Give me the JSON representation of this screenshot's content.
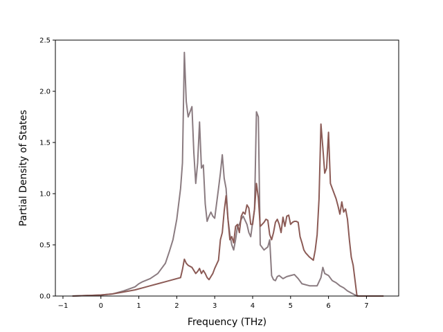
{
  "chart_data": {
    "type": "line",
    "title": "",
    "xlabel": "Frequency (THz)",
    "ylabel": "Partial Density of States",
    "xlim": [
      -1.2,
      7.85
    ],
    "ylim": [
      0,
      2.5
    ],
    "xticks": [
      -1,
      0,
      1,
      2,
      3,
      4,
      5,
      6,
      7
    ],
    "yticks": [
      0.0,
      0.5,
      1.0,
      1.5,
      2.0,
      2.5
    ],
    "xtick_labels": [
      "−1",
      "0",
      "1",
      "2",
      "3",
      "4",
      "5",
      "6",
      "7"
    ],
    "ytick_labels": [
      "0.0",
      "0.5",
      "1.0",
      "1.5",
      "2.0",
      "2.5"
    ],
    "grid": false,
    "legend": "none",
    "series": [
      {
        "color": "#8a7b80",
        "x": [
          -0.75,
          0.0,
          0.3,
          0.6,
          0.9,
          1.0,
          1.1,
          1.3,
          1.5,
          1.7,
          1.8,
          1.9,
          2.0,
          2.1,
          2.15,
          2.2,
          2.25,
          2.3,
          2.35,
          2.4,
          2.45,
          2.5,
          2.55,
          2.6,
          2.65,
          2.7,
          2.75,
          2.8,
          2.85,
          2.9,
          2.95,
          3.0,
          3.1,
          3.15,
          3.2,
          3.25,
          3.3,
          3.35,
          3.4,
          3.45,
          3.5,
          3.55,
          3.6,
          3.65,
          3.7,
          3.75,
          3.8,
          3.85,
          3.9,
          3.95,
          4.0,
          4.05,
          4.1,
          4.15,
          4.2,
          4.3,
          4.4,
          4.45,
          4.5,
          4.55,
          4.6,
          4.65,
          4.7,
          4.8,
          4.9,
          5.0,
          5.1,
          5.2,
          5.3,
          5.5,
          5.7,
          5.8,
          5.85,
          5.9,
          6.0,
          6.1,
          6.2,
          6.3,
          6.4,
          6.5,
          6.6,
          6.7,
          6.8,
          7.45
        ],
        "y": [
          0.0,
          0.01,
          0.02,
          0.05,
          0.09,
          0.12,
          0.14,
          0.17,
          0.22,
          0.32,
          0.43,
          0.55,
          0.75,
          1.05,
          1.3,
          2.38,
          1.9,
          1.75,
          1.8,
          1.85,
          1.4,
          1.1,
          1.3,
          1.7,
          1.25,
          1.28,
          0.9,
          0.73,
          0.78,
          0.82,
          0.78,
          0.76,
          1.05,
          1.2,
          1.38,
          1.15,
          1.05,
          0.75,
          0.6,
          0.5,
          0.45,
          0.55,
          0.68,
          0.7,
          0.75,
          0.78,
          0.74,
          0.7,
          0.62,
          0.58,
          0.72,
          0.85,
          1.8,
          1.75,
          0.5,
          0.45,
          0.48,
          0.55,
          0.2,
          0.16,
          0.15,
          0.19,
          0.2,
          0.17,
          0.19,
          0.2,
          0.21,
          0.17,
          0.12,
          0.1,
          0.1,
          0.18,
          0.28,
          0.22,
          0.2,
          0.15,
          0.13,
          0.1,
          0.08,
          0.05,
          0.03,
          0.01,
          0.0,
          0.0
        ]
      },
      {
        "color": "#8b5a55",
        "x": [
          -0.75,
          0.0,
          0.3,
          0.6,
          0.9,
          1.0,
          1.1,
          1.3,
          1.5,
          1.7,
          1.9,
          2.0,
          2.1,
          2.15,
          2.2,
          2.25,
          2.3,
          2.4,
          2.5,
          2.55,
          2.6,
          2.65,
          2.7,
          2.75,
          2.8,
          2.85,
          2.9,
          2.95,
          3.0,
          3.1,
          3.15,
          3.2,
          3.25,
          3.3,
          3.35,
          3.4,
          3.45,
          3.5,
          3.55,
          3.6,
          3.65,
          3.7,
          3.75,
          3.8,
          3.85,
          3.9,
          3.95,
          4.0,
          4.05,
          4.1,
          4.15,
          4.2,
          4.25,
          4.3,
          4.35,
          4.4,
          4.45,
          4.5,
          4.55,
          4.6,
          4.65,
          4.7,
          4.75,
          4.8,
          4.85,
          4.9,
          4.95,
          5.0,
          5.05,
          5.1,
          5.15,
          5.2,
          5.25,
          5.3,
          5.35,
          5.4,
          5.5,
          5.6,
          5.65,
          5.7,
          5.75,
          5.8,
          5.85,
          5.9,
          5.95,
          6.0,
          6.05,
          6.1,
          6.15,
          6.2,
          6.25,
          6.3,
          6.35,
          6.4,
          6.45,
          6.5,
          6.55,
          6.6,
          6.65,
          6.7,
          6.75,
          7.45
        ],
        "y": [
          0.0,
          0.01,
          0.02,
          0.04,
          0.06,
          0.07,
          0.08,
          0.1,
          0.12,
          0.14,
          0.16,
          0.17,
          0.18,
          0.26,
          0.36,
          0.32,
          0.3,
          0.28,
          0.22,
          0.24,
          0.27,
          0.22,
          0.25,
          0.22,
          0.18,
          0.16,
          0.19,
          0.22,
          0.27,
          0.35,
          0.55,
          0.62,
          0.83,
          0.98,
          0.75,
          0.55,
          0.58,
          0.52,
          0.68,
          0.7,
          0.62,
          0.78,
          0.82,
          0.8,
          0.89,
          0.86,
          0.7,
          0.7,
          0.85,
          1.1,
          0.96,
          0.68,
          0.7,
          0.72,
          0.75,
          0.74,
          0.6,
          0.55,
          0.62,
          0.72,
          0.75,
          0.7,
          0.62,
          0.77,
          0.68,
          0.78,
          0.79,
          0.7,
          0.72,
          0.73,
          0.73,
          0.72,
          0.58,
          0.52,
          0.45,
          0.42,
          0.38,
          0.35,
          0.45,
          0.6,
          0.95,
          1.68,
          1.45,
          1.2,
          1.25,
          1.6,
          1.1,
          1.05,
          1.0,
          0.95,
          0.88,
          0.8,
          0.92,
          0.82,
          0.85,
          0.75,
          0.55,
          0.38,
          0.3,
          0.15,
          0.0,
          0.0
        ]
      }
    ]
  }
}
